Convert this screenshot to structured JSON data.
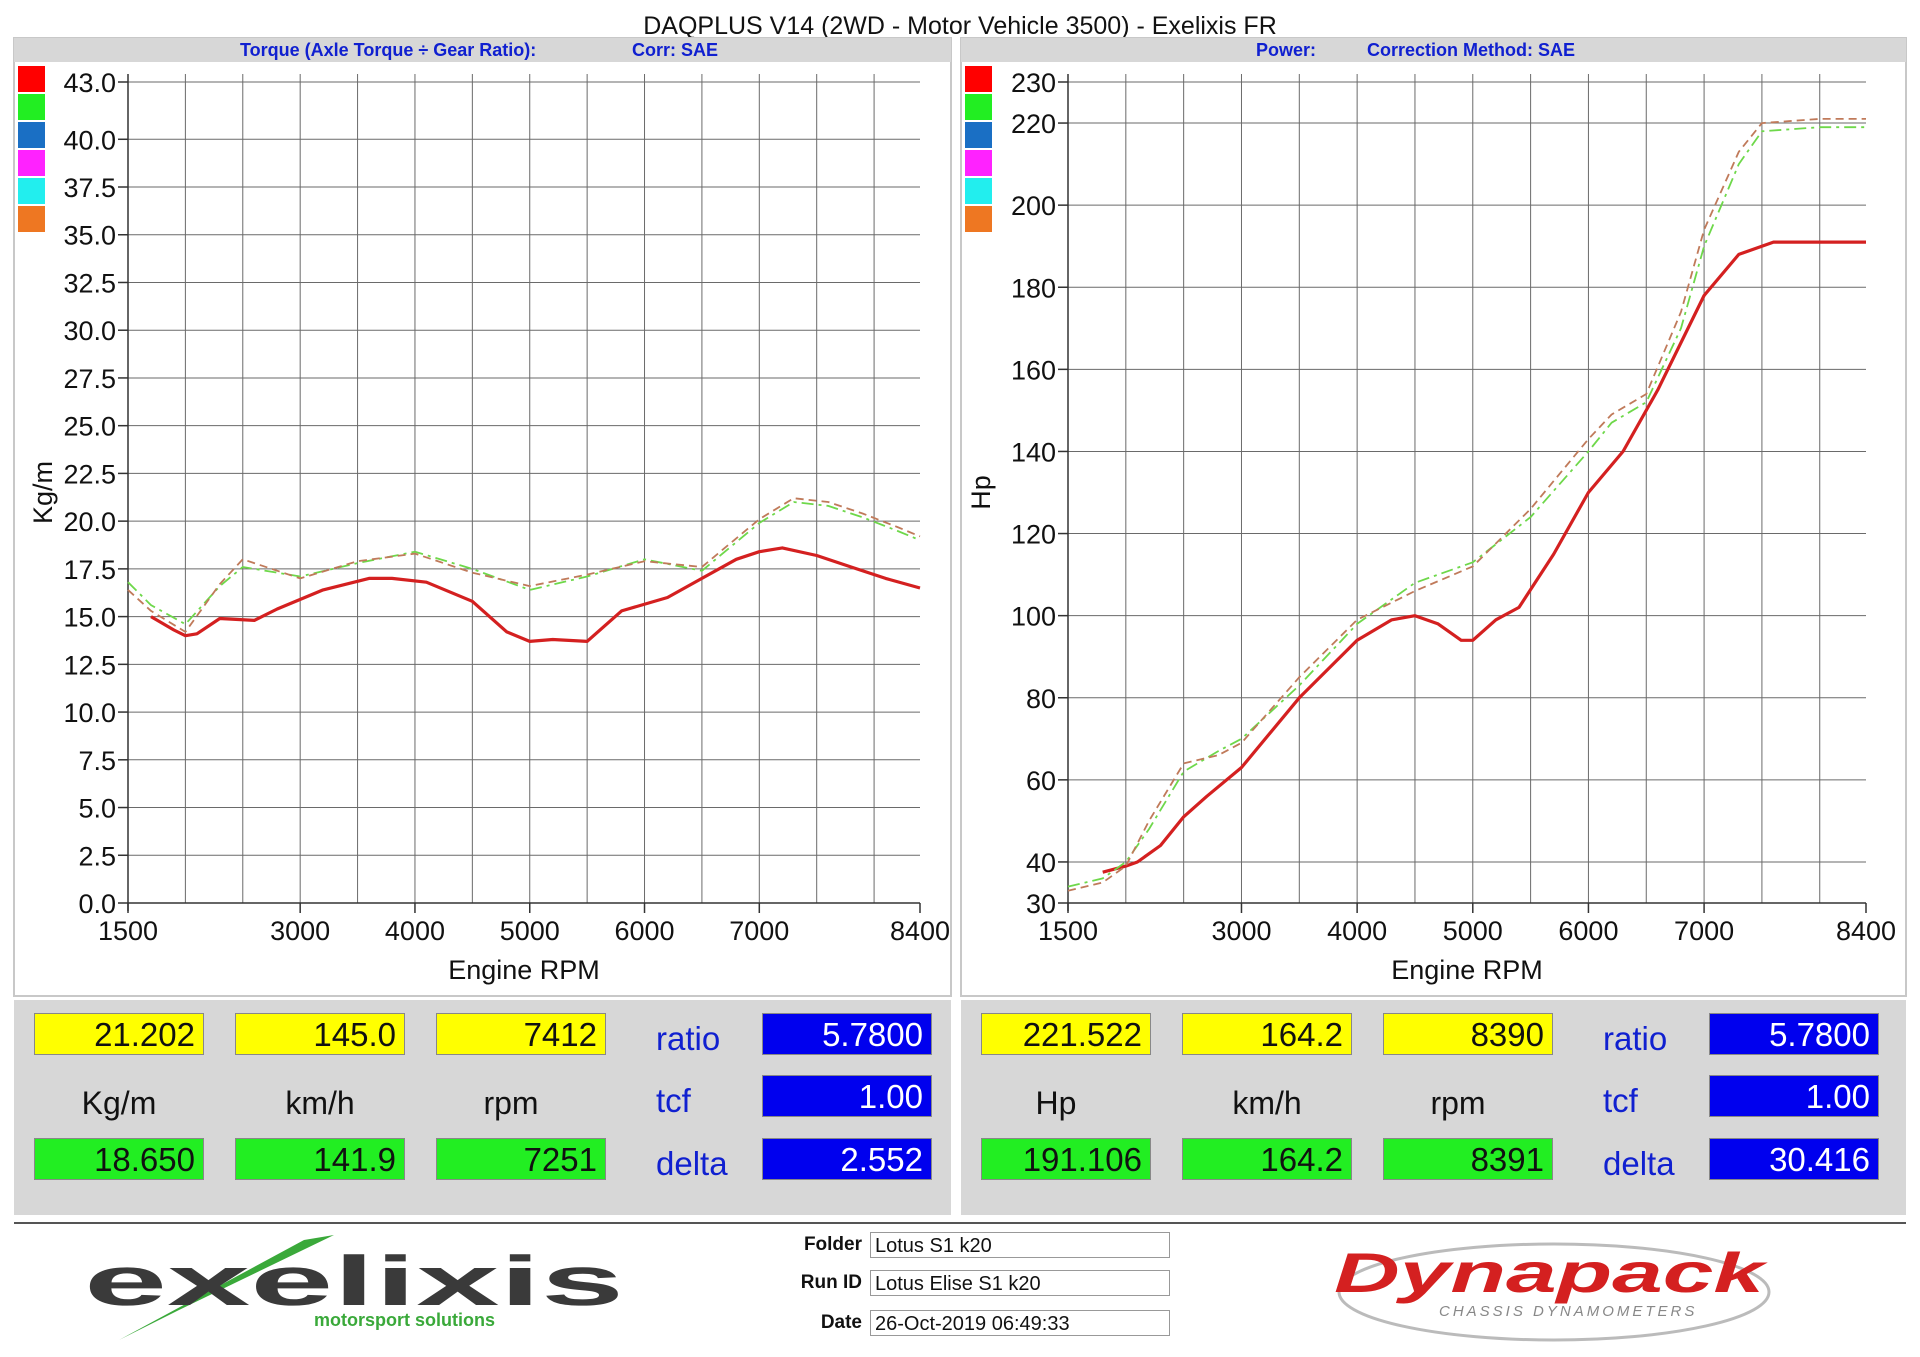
{
  "title": "DAQPLUS V14 (2WD - Motor Vehicle 3500) - Exelixis FR",
  "colors": {
    "red": "#d42020",
    "green_dash": "#6ed84a",
    "brown_dash": "#c07a5a",
    "swatches": [
      "#ff0000",
      "#22ee22",
      "#1a6fc4",
      "#ff22ff",
      "#22eeee",
      "#ee7722"
    ]
  },
  "chart_data": [
    {
      "type": "line",
      "header_left": "Torque (Axle Torque ÷ Gear Ratio):",
      "header_right": "Corr: SAE",
      "xlabel": "Engine RPM",
      "ylabel": "Kg/m",
      "xlim": [
        1500,
        8400
      ],
      "ylim": [
        0,
        43
      ],
      "x_ticks": [
        1500,
        3000,
        4000,
        5000,
        6000,
        7000,
        8400
      ],
      "y_ticks": [
        "0.0",
        "2.5",
        "5.0",
        "7.5",
        "10.0",
        "12.5",
        "15.0",
        "17.5",
        "20.0",
        "22.5",
        "25.0",
        "27.5",
        "30.0",
        "32.5",
        "35.0",
        "37.5",
        "40.0",
        "43.0"
      ],
      "series": [
        {
          "color": "red",
          "x": [
            1700,
            1900,
            2000,
            2100,
            2300,
            2600,
            2800,
            3200,
            3600,
            3800,
            4100,
            4500,
            4800,
            5000,
            5200,
            5500,
            5800,
            6200,
            6500,
            6800,
            7000,
            7200,
            7500,
            7800,
            8100,
            8400
          ],
          "values": [
            15.0,
            14.3,
            14.0,
            14.1,
            14.9,
            14.8,
            15.4,
            16.4,
            17.0,
            17.0,
            16.8,
            15.8,
            14.2,
            13.7,
            13.8,
            13.7,
            15.3,
            16.0,
            17.0,
            18.0,
            18.4,
            18.6,
            18.2,
            17.6,
            17.0,
            16.5
          ]
        },
        {
          "color": "green_dash",
          "x": [
            1500,
            1700,
            2000,
            2300,
            2500,
            3000,
            3500,
            4000,
            4500,
            5000,
            5500,
            6000,
            6500,
            7000,
            7300,
            7600,
            7900,
            8200,
            8400
          ],
          "values": [
            16.8,
            15.6,
            14.6,
            16.6,
            17.6,
            17.1,
            17.8,
            18.4,
            17.5,
            16.4,
            17.1,
            18.0,
            17.4,
            19.9,
            21.0,
            20.8,
            20.2,
            19.5,
            19.0
          ]
        },
        {
          "color": "brown_dash",
          "x": [
            1500,
            1700,
            2000,
            2300,
            2500,
            3000,
            3500,
            4000,
            4500,
            5000,
            5500,
            6000,
            6500,
            7000,
            7300,
            7600,
            7900,
            8200,
            8400
          ],
          "values": [
            16.4,
            15.3,
            14.2,
            16.7,
            18.0,
            17.0,
            17.9,
            18.3,
            17.3,
            16.6,
            17.2,
            17.9,
            17.6,
            20.1,
            21.2,
            21.0,
            20.4,
            19.7,
            19.2
          ]
        }
      ],
      "readout": {
        "top": [
          "21.202",
          "145.0",
          "7412"
        ],
        "units": [
          "Kg/m",
          "km/h",
          "rpm"
        ],
        "bottom": [
          "18.650",
          "141.9",
          "7251"
        ],
        "labels": [
          "ratio",
          "tcf",
          "delta"
        ],
        "values": [
          "5.7800",
          "1.00",
          "2.552"
        ]
      }
    },
    {
      "type": "line",
      "header_left": "Power:",
      "header_right": "Correction Method: SAE",
      "xlabel": "Engine RPM",
      "ylabel": "Hp",
      "xlim": [
        1500,
        8400
      ],
      "ylim": [
        30,
        230
      ],
      "x_ticks": [
        1500,
        3000,
        4000,
        5000,
        6000,
        7000,
        8400
      ],
      "y_ticks": [
        "30",
        "40",
        "60",
        "80",
        "100",
        "120",
        "140",
        "160",
        "180",
        "200",
        "220",
        "230"
      ],
      "series": [
        {
          "color": "red",
          "x": [
            1800,
            2000,
            2100,
            2300,
            2500,
            2700,
            3000,
            3500,
            4000,
            4300,
            4500,
            4700,
            4900,
            5000,
            5200,
            5400,
            5700,
            6000,
            6300,
            6600,
            7000,
            7300,
            7600,
            8000,
            8400
          ],
          "values": [
            37.5,
            39,
            40,
            44,
            51,
            56,
            63,
            80,
            94,
            99,
            100,
            98,
            94,
            94,
            99,
            102,
            115,
            130,
            140,
            155,
            178,
            188,
            191,
            191,
            191
          ]
        },
        {
          "color": "green_dash",
          "x": [
            1500,
            1800,
            2000,
            2200,
            2500,
            2800,
            3000,
            3500,
            4000,
            4500,
            5000,
            5500,
            6000,
            6200,
            6500,
            6800,
            7000,
            7300,
            7500,
            8000,
            8400
          ],
          "values": [
            34,
            36,
            40,
            48,
            62,
            67,
            70,
            83,
            98,
            108,
            113,
            124,
            140,
            147,
            152,
            170,
            190,
            210,
            218,
            219,
            219
          ]
        },
        {
          "color": "brown_dash",
          "x": [
            1500,
            1800,
            2000,
            2200,
            2500,
            2800,
            3000,
            3500,
            4000,
            4500,
            5000,
            5500,
            6000,
            6200,
            6500,
            6800,
            7000,
            7300,
            7500,
            8000,
            8400
          ],
          "values": [
            33,
            35,
            39,
            50,
            64,
            66,
            69,
            85,
            99,
            106,
            112,
            126,
            143,
            149,
            154,
            174,
            194,
            213,
            220,
            221,
            221
          ]
        }
      ],
      "readout": {
        "top": [
          "221.522",
          "164.2",
          "8390"
        ],
        "units": [
          "Hp",
          "km/h",
          "rpm"
        ],
        "bottom": [
          "191.106",
          "164.2",
          "8391"
        ],
        "labels": [
          "ratio",
          "tcf",
          "delta"
        ],
        "values": [
          "5.7800",
          "1.00",
          "30.416"
        ]
      }
    }
  ],
  "footer": {
    "logo_left_text": "exelixis",
    "logo_left_sub": "motorsport solutions",
    "folder_label": "Folder",
    "folder_value": "Lotus S1 k20",
    "runid_label": "Run ID",
    "runid_value": "Lotus Elise S1 k20",
    "date_label": "Date",
    "date_value": "26-Oct-2019 06:49:33",
    "logo_right_text": "Dynapack",
    "logo_right_sub": "CHASSIS DYNAMOMETERS"
  }
}
